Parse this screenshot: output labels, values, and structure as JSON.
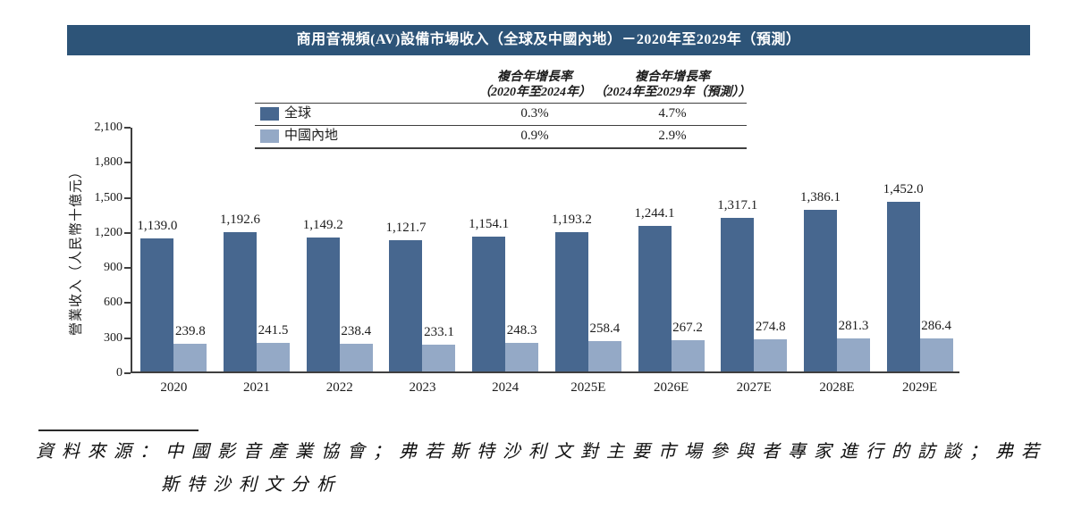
{
  "chart_data": {
    "type": "bar",
    "title": "商用音視頻(AV)設備市場收入（全球及中國內地）－2020年至2029年（預測）",
    "categories": [
      "2020",
      "2021",
      "2022",
      "2023",
      "2024",
      "2025E",
      "2026E",
      "2027E",
      "2028E",
      "2029E"
    ],
    "series": [
      {
        "name": "全球",
        "color": "#47678f",
        "values": [
          1139.0,
          1192.6,
          1149.2,
          1121.7,
          1154.1,
          1193.2,
          1244.1,
          1317.1,
          1386.1,
          1452.0
        ],
        "labels": [
          "1,139.0",
          "1,192.6",
          "1,149.2",
          "1,121.7",
          "1,154.1",
          "1,193.2",
          "1,244.1",
          "1,317.1",
          "1,386.1",
          "1,452.0"
        ],
        "cagr_2020_2024": "0.3%",
        "cagr_2024_2029": "4.7%"
      },
      {
        "name": "中國內地",
        "color": "#94a9c6",
        "values": [
          239.8,
          241.5,
          238.4,
          233.1,
          248.3,
          258.4,
          267.2,
          274.8,
          281.3,
          286.4
        ],
        "labels": [
          "239.8",
          "241.5",
          "238.4",
          "233.1",
          "248.3",
          "258.4",
          "267.2",
          "274.8",
          "281.3",
          "286.4"
        ],
        "cagr_2020_2024": "0.9%",
        "cagr_2024_2029": "2.9%"
      }
    ],
    "legend_headers": [
      {
        "line1": "複合年增長率",
        "line2": "（2020年至2024年）"
      },
      {
        "line1": "複合年增長率",
        "line2": "（2024年至2029年（預測））"
      }
    ],
    "xlabel": "",
    "ylabel": "營業收入（人民幣十億元）",
    "ylim": [
      0,
      2100
    ],
    "ytick_step": 300,
    "yticks": [
      "0",
      "300",
      "600",
      "900",
      "1,200",
      "1,500",
      "1,800",
      "2,100"
    ],
    "grid": false,
    "legend_position": "top-table",
    "bar_label_format": "thousands-comma, 1 decimal"
  },
  "source": {
    "line1": "資料來源：中國影音產業協會；弗若斯特沙利文對主要市場參與者專家進行的訪談；弗若",
    "line2": "斯特沙利文分析"
  },
  "colors": {
    "title_bar_bg": "#2d5478",
    "title_text": "#ffffff",
    "global_bar": "#47678f",
    "china_bar": "#94a9c6",
    "axis": "#3f3f3f"
  }
}
